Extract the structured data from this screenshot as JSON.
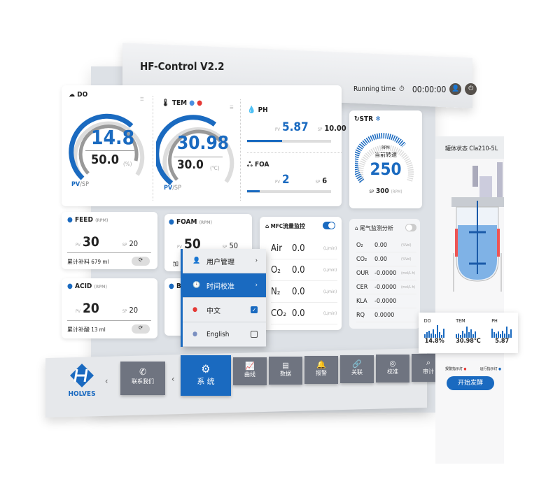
{
  "header": {
    "title": "HF-Control V2.2",
    "running_label": "Running time",
    "running_value": "00:00:00"
  },
  "do": {
    "title": "DO",
    "pv": "14.8",
    "sp": "50.0",
    "unit": "(%)",
    "pv_label": "PV",
    "sp_label": "/SP",
    "fill": 0.3
  },
  "tem": {
    "title": "TEM",
    "pv": "30.98",
    "sp": "30.0",
    "unit": "(℃)",
    "pv_label": "PV",
    "sp_label": "/SP",
    "fill": 0.6
  },
  "ph": {
    "title": "PH",
    "pv_label": "PV",
    "pv": "5.87",
    "sp_label": "SP",
    "sp": "10.00",
    "fill": 0.587
  },
  "foa": {
    "title": "FOA",
    "pv_label": "PV",
    "pv": "2",
    "sp_label": "SP",
    "sp": "6",
    "fill": 0.2
  },
  "str": {
    "title": "STR",
    "unit_top": "RPM",
    "caption": "当前转速",
    "pv": "250",
    "sp_label": "SP",
    "sp": "300",
    "unit": "(RPM)",
    "fill": 0.83
  },
  "feed": {
    "title": "FEED",
    "unit": "(RPM)",
    "pv_label": "PV",
    "pv": "30",
    "sp_label": "SP",
    "sp": "20",
    "total_label": "累计补料",
    "total": "679 ml"
  },
  "acid": {
    "title": "ACID",
    "unit": "(RPM)",
    "pv_label": "PV",
    "pv": "20",
    "sp_label": "SP",
    "sp": "20",
    "total_label": "累计补酸",
    "total": "13 ml"
  },
  "foam": {
    "title": "FOAM",
    "unit": "(RPM)",
    "pv_label": "PV",
    "pv": "50",
    "sp_label": "SP",
    "sp": "50",
    "total_label": "加"
  },
  "base": {
    "title": "B"
  },
  "mfc": {
    "title": "MFC流量监控",
    "toggle_on": true,
    "rows": [
      {
        "name": "Air",
        "value": "0.0",
        "unit": "(L/min)"
      },
      {
        "name": "O₂",
        "value": "0.0",
        "unit": "(L/min)"
      },
      {
        "name": "N₂",
        "value": "0.0",
        "unit": "(L/min)"
      },
      {
        "name": "CO₂",
        "value": "0.0",
        "unit": "(L/min)"
      }
    ]
  },
  "exhaust": {
    "title": "尾气监测分析",
    "toggle_on": false,
    "rows": [
      {
        "name": "O₂",
        "value": "0.00",
        "unit": "(%Vol)"
      },
      {
        "name": "CO₂",
        "value": "0.00",
        "unit": "(%Vol)"
      },
      {
        "name": "OUR",
        "value": "-0.0000",
        "unit": "(mol/L·h)"
      },
      {
        "name": "CER",
        "value": "-0.0000",
        "unit": "(mol/L·h)"
      },
      {
        "name": "KLA",
        "value": "-0.0000",
        "unit": ""
      },
      {
        "name": "RQ",
        "value": "0.0000",
        "unit": ""
      }
    ]
  },
  "menu": {
    "items": [
      {
        "label": "用户管理",
        "icon": "user-icon"
      },
      {
        "label": "时间校准",
        "icon": "clock-icon",
        "active": true
      },
      {
        "label": "中文",
        "icon": "china-flag-icon",
        "checked": true
      },
      {
        "label": "English",
        "icon": "us-flag-icon",
        "checked": false
      }
    ]
  },
  "nav": {
    "logo": "HOLVES",
    "contact": "联系我们",
    "items": [
      {
        "label": "系 统",
        "icon": "gear-icon",
        "active": true
      },
      {
        "label": "曲线",
        "icon": "chart-icon"
      },
      {
        "label": "数据",
        "icon": "document-icon"
      },
      {
        "label": "报警",
        "icon": "bell-icon"
      },
      {
        "label": "关联",
        "icon": "link-icon"
      },
      {
        "label": "校准",
        "icon": "target-icon"
      },
      {
        "label": "审计",
        "icon": "audit-icon"
      }
    ]
  },
  "side": {
    "status_label": "罐体状态",
    "model": "Cla210-5L",
    "alarm_label": "报警指示灯",
    "run_label": "运行指示灯",
    "start_button": "开始发酵",
    "mini": [
      {
        "name": "DO",
        "value": "14.8%"
      },
      {
        "name": "TEM",
        "value": "30.98℃"
      },
      {
        "name": "PH",
        "value": "5.87"
      }
    ]
  },
  "colors": {
    "accent": "#1a6ac0",
    "nav": "#6f7480",
    "panel": "#dde1e6",
    "alarm": "#e53935"
  }
}
